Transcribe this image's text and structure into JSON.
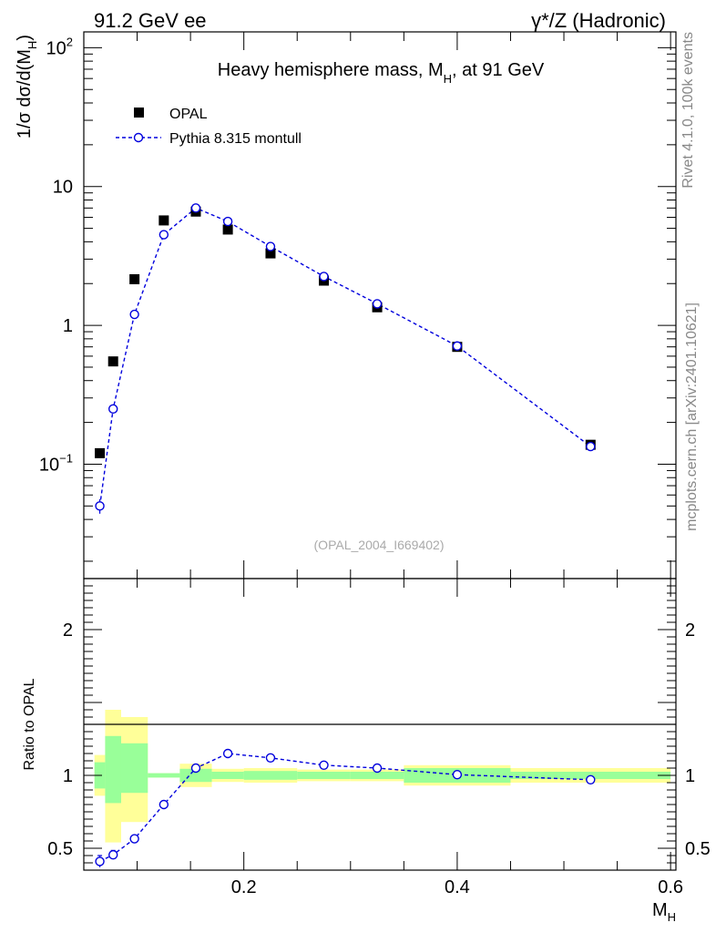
{
  "header": {
    "left": "91.2 GeV ee",
    "right": "γ*/Z (Hadronic)"
  },
  "side": {
    "rivet": "Rivet 4.1.0,  100k events",
    "mcplots": "mcplots.cern.ch [arXiv:2401.10621]"
  },
  "chart_data": [
    {
      "type": "scatter",
      "title": "Heavy hemisphere mass, M",
      "title_sub": "H",
      "title_tail": ", at 91 GeV",
      "ylabel": "1/σ  dσ/d(M",
      "ylabel_sub": "H",
      "ylabel_tail": ")",
      "yscale": "log",
      "xlim": [
        0.05,
        0.605
      ],
      "ylim": [
        0.015,
        130
      ],
      "y_ticks": [
        {
          "value": 0.1,
          "base": "10",
          "exp": "−1"
        },
        {
          "value": 1,
          "base": "1",
          "exp": ""
        },
        {
          "value": 10,
          "base": "10",
          "exp": ""
        },
        {
          "value": 100,
          "base": "10",
          "exp": "2"
        }
      ],
      "watermark": "(OPAL_2004_I669402)",
      "legend": {
        "position": "top-left",
        "entries": [
          "OPAL",
          "Pythia 8.315 montull"
        ]
      },
      "x_bins": [
        [
          0.06,
          0.07
        ],
        [
          0.07,
          0.085
        ],
        [
          0.085,
          0.11
        ],
        [
          0.11,
          0.14
        ],
        [
          0.14,
          0.17
        ],
        [
          0.17,
          0.2
        ],
        [
          0.2,
          0.25
        ],
        [
          0.25,
          0.3
        ],
        [
          0.3,
          0.35
        ],
        [
          0.35,
          0.45
        ],
        [
          0.45,
          0.6
        ]
      ],
      "series": [
        {
          "name": "OPAL",
          "marker": "square",
          "color": "#000000",
          "x": [
            0.065,
            0.0775,
            0.0975,
            0.125,
            0.155,
            0.185,
            0.225,
            0.275,
            0.325,
            0.4,
            0.525
          ],
          "y": [
            0.12,
            0.55,
            2.15,
            5.7,
            6.6,
            4.9,
            3.3,
            2.1,
            1.35,
            0.7,
            0.138
          ]
        },
        {
          "name": "Pythia 8.315 montull",
          "marker": "circle",
          "line": "dashed",
          "color": "#0000dd",
          "x": [
            0.065,
            0.0775,
            0.0975,
            0.125,
            0.155,
            0.185,
            0.225,
            0.275,
            0.325,
            0.4,
            0.525
          ],
          "y": [
            0.05,
            0.25,
            1.2,
            4.5,
            7.0,
            5.6,
            3.7,
            2.25,
            1.43,
            0.71,
            0.134
          ],
          "y_err": [
            0.006,
            0,
            0,
            0,
            0,
            0,
            0,
            0,
            0,
            0,
            0
          ]
        }
      ]
    },
    {
      "type": "scatter",
      "ylabel": "Ratio to OPAL",
      "xlabel": "M",
      "xlabel_sub": "H",
      "xlim": [
        0.05,
        0.605
      ],
      "ylim": [
        0.35,
        2.35
      ],
      "x_ticks": [
        0.2,
        0.4,
        0.6
      ],
      "y_ticks": [
        0.5,
        1,
        2
      ],
      "x_bins": [
        [
          0.06,
          0.07
        ],
        [
          0.07,
          0.085
        ],
        [
          0.085,
          0.11
        ],
        [
          0.11,
          0.14
        ],
        [
          0.14,
          0.17
        ],
        [
          0.17,
          0.2
        ],
        [
          0.2,
          0.25
        ],
        [
          0.25,
          0.3
        ],
        [
          0.3,
          0.35
        ],
        [
          0.35,
          0.45
        ],
        [
          0.45,
          0.6
        ]
      ],
      "band_stat": [
        [
          0.91,
          1.09
        ],
        [
          0.81,
          1.27
        ],
        [
          0.88,
          1.22
        ],
        [
          0.985,
          1.015
        ],
        [
          0.955,
          1.045
        ],
        [
          0.975,
          1.025
        ],
        [
          0.97,
          1.03
        ],
        [
          0.975,
          1.025
        ],
        [
          0.975,
          1.025
        ],
        [
          0.95,
          1.05
        ],
        [
          0.975,
          1.025
        ]
      ],
      "band_total": [
        [
          0.86,
          1.14
        ],
        [
          0.54,
          1.45
        ],
        [
          0.68,
          1.4
        ],
        [
          0.985,
          1.015
        ],
        [
          0.92,
          1.08
        ],
        [
          0.955,
          1.045
        ],
        [
          0.95,
          1.05
        ],
        [
          0.96,
          1.04
        ],
        [
          0.96,
          1.04
        ],
        [
          0.93,
          1.07
        ],
        [
          0.95,
          1.05
        ]
      ],
      "series": [
        {
          "name": "Pythia 8.315 montull / OPAL",
          "marker": "circle",
          "line": "dashed",
          "color": "#0000dd",
          "x": [
            0.065,
            0.0775,
            0.0975,
            0.125,
            0.155,
            0.185,
            0.225,
            0.275,
            0.325,
            0.4,
            0.525
          ],
          "y": [
            0.41,
            0.455,
            0.565,
            0.8,
            1.05,
            1.15,
            1.12,
            1.07,
            1.05,
            1.005,
            0.97
          ],
          "y_err": [
            0.04,
            0.03,
            0,
            0,
            0,
            0,
            0,
            0,
            0,
            0,
            0
          ]
        }
      ]
    }
  ]
}
